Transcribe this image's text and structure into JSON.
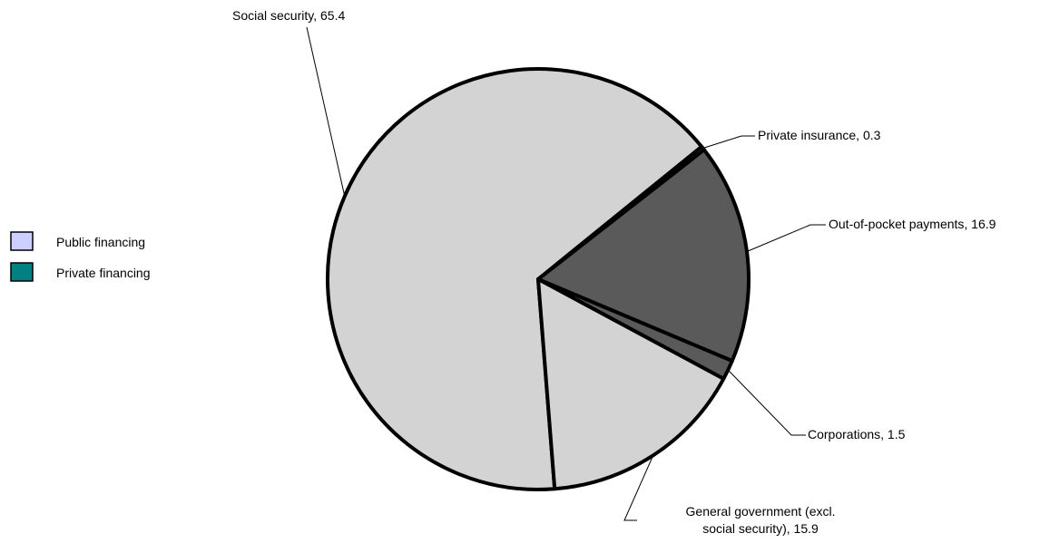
{
  "chart_data": {
    "type": "pie",
    "title": "",
    "slices": [
      {
        "label": "Social security",
        "value": 65.4,
        "display": "Social security, 65.4",
        "group": "public",
        "color": "#d3d3d3"
      },
      {
        "label": "Private insurance",
        "value": 0.3,
        "display": "Private insurance, 0.3",
        "group": "private",
        "color": "#5a5a5a"
      },
      {
        "label": "Out-of-pocket payments",
        "value": 16.9,
        "display": "Out-of-pocket payments, 16.9",
        "group": "private",
        "color": "#5a5a5a"
      },
      {
        "label": "Corporations",
        "value": 1.5,
        "display": "Corporations, 1.5",
        "group": "private",
        "color": "#5a5a5a"
      },
      {
        "label": "General government (excl. social security)",
        "value": 15.9,
        "display_lines": [
          "General government (excl.",
          "social security), 15.9"
        ],
        "group": "public",
        "color": "#d3d3d3"
      }
    ],
    "legend": {
      "placement": "left",
      "entries": [
        {
          "label": "Public financing",
          "color": "#cccfff"
        },
        {
          "label": "Private financing",
          "color": "#008080"
        }
      ]
    },
    "edge_color": "#000000"
  }
}
